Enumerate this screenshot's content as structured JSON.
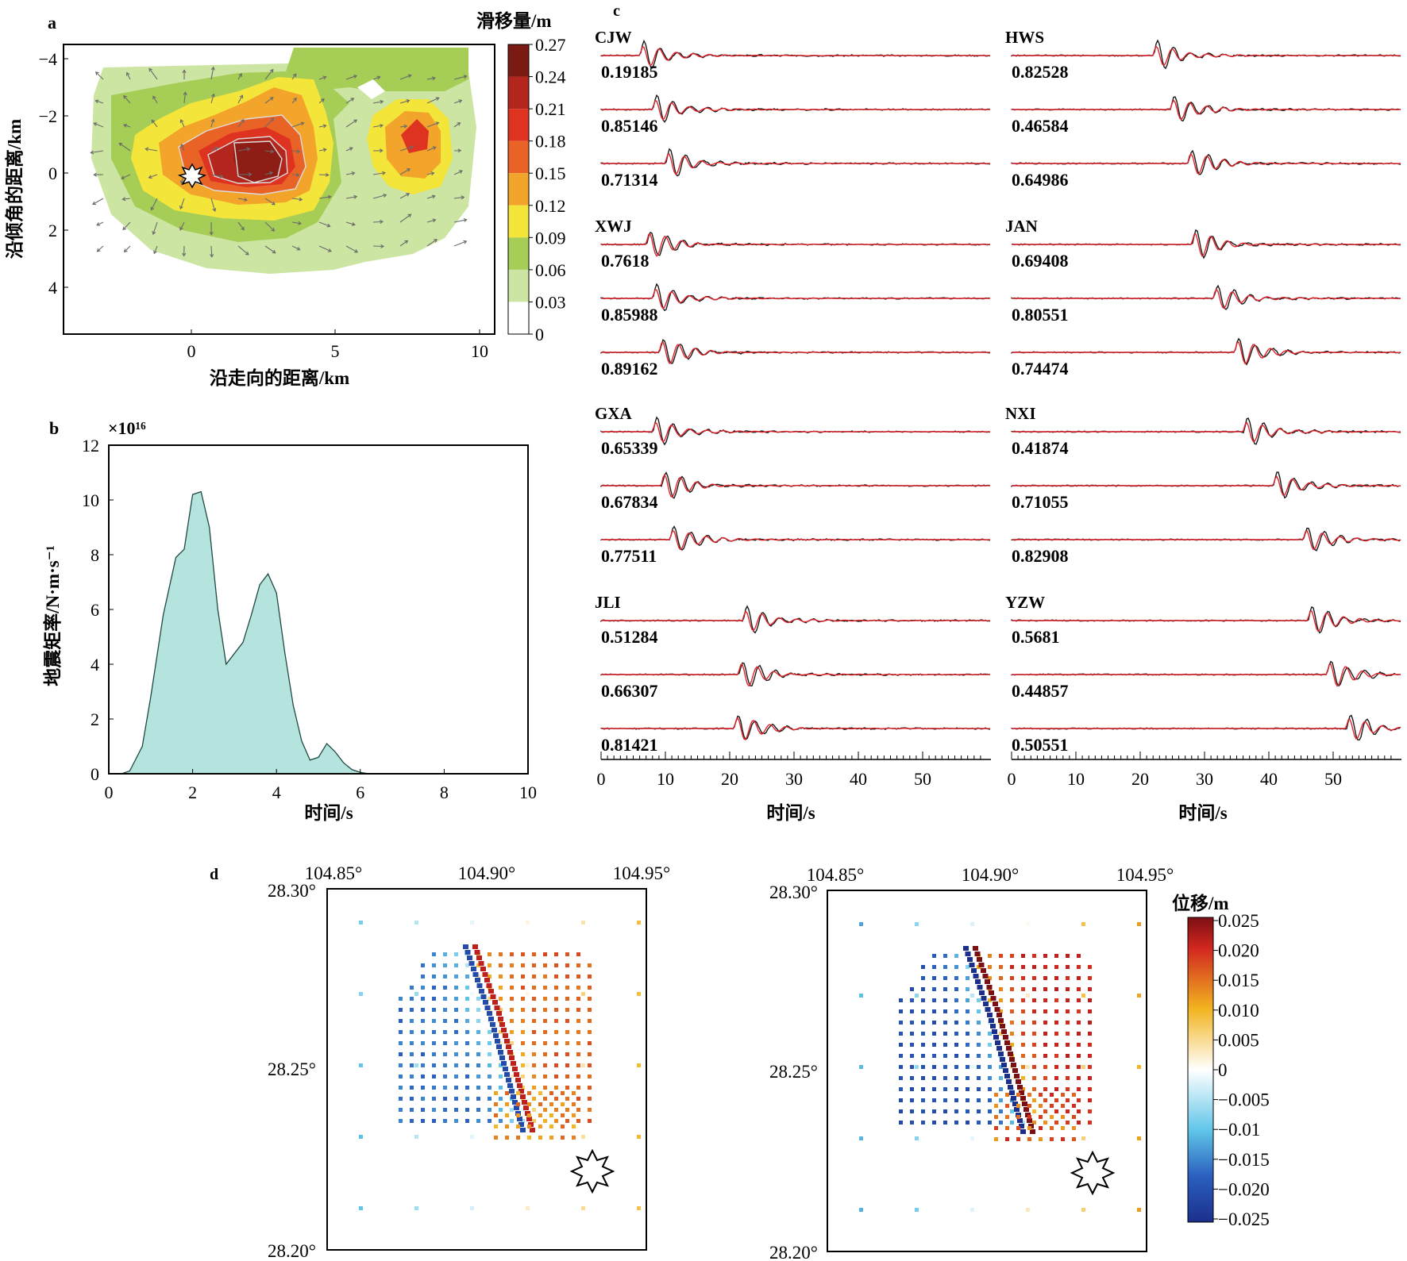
{
  "panel_labels": {
    "a": "a",
    "b": "b",
    "c": "c",
    "d": "d"
  },
  "panel_a": {
    "xlabel": "沿走向的距离/km",
    "ylabel": "沿倾角的距离/km",
    "xticks": [
      "0",
      "5",
      "10"
    ],
    "yticks": [
      "−4",
      "−2",
      "0",
      "2",
      "4"
    ],
    "colorbar_title": "滑移量/m",
    "colorbar_ticks": [
      "0.27",
      "0.24",
      "0.21",
      "0.18",
      "0.15",
      "0.12",
      "0.09",
      "0.06",
      "0.03",
      "0"
    ],
    "colorbar_colors": [
      "#7a1a12",
      "#b2261d",
      "#df3322",
      "#ea6326",
      "#f2a52a",
      "#f4e53a",
      "#a6cd55",
      "#cde5a3",
      "#ffffff"
    ]
  },
  "panel_c": {
    "xlabel": "时间/s",
    "xticks": [
      "0",
      "10",
      "20",
      "30",
      "40",
      "50"
    ],
    "observed_color": "#1a1a1a",
    "synthetic_color": "#e0242c",
    "stations": [
      {
        "name": "CJW",
        "cc": [
          "0.19185",
          "0.85146",
          "0.71314"
        ]
      },
      {
        "name": "XWJ",
        "cc": [
          "0.7618",
          "0.85988",
          "0.89162"
        ]
      },
      {
        "name": "GXA",
        "cc": [
          "0.65339",
          "0.67834",
          "0.77511"
        ]
      },
      {
        "name": "JLI",
        "cc": [
          "0.51284",
          "0.66307",
          "0.81421"
        ]
      },
      {
        "name": "HWS",
        "cc": [
          "0.82528",
          "0.46584",
          "0.64986"
        ]
      },
      {
        "name": "JAN",
        "cc": [
          "0.69408",
          "0.80551",
          "0.74474"
        ]
      },
      {
        "name": "NXI",
        "cc": [
          "0.41874",
          "0.71055",
          "0.82908"
        ]
      },
      {
        "name": "YZW",
        "cc": [
          "0.5681",
          "0.44857",
          "0.50551"
        ]
      }
    ]
  },
  "panel_d": {
    "lon_ticks": [
      "104.85°",
      "104.90°",
      "104.95°"
    ],
    "lat_ticks": [
      "28.30°",
      "28.25°",
      "28.20°"
    ],
    "colorbar_title": "位移/m",
    "colorbar_ticks": [
      "0.025",
      "0.020",
      "0.015",
      "0.010",
      "0.005",
      "0",
      "−0.005",
      "−0.01",
      "−0.015",
      "−0.020",
      "−0.025"
    ]
  },
  "chart_data": [
    {
      "type": "area",
      "panel": "b",
      "title": "",
      "xlabel": "时间/s",
      "ylabel": "地震矩率/N·m·s⁻¹",
      "y_multiplier": "×10¹⁶",
      "xlim": [
        0,
        10
      ],
      "ylim": [
        0,
        12
      ],
      "xticks": [
        "0",
        "2",
        "4",
        "6",
        "8",
        "10"
      ],
      "yticks": [
        "0",
        "2",
        "4",
        "6",
        "8",
        "10",
        "12"
      ],
      "fill_color": "#b5e3de",
      "x": [
        0.3,
        0.5,
        0.8,
        1.0,
        1.3,
        1.6,
        1.8,
        2.0,
        2.2,
        2.4,
        2.6,
        2.8,
        3.0,
        3.2,
        3.4,
        3.6,
        3.8,
        4.0,
        4.2,
        4.4,
        4.6,
        4.8,
        5.0,
        5.2,
        5.4,
        5.6,
        5.8,
        6.0,
        6.2
      ],
      "y": [
        0,
        0.1,
        1.0,
        2.8,
        5.8,
        7.9,
        8.2,
        10.2,
        10.3,
        9.0,
        6.0,
        4.0,
        4.4,
        4.8,
        5.8,
        6.9,
        7.3,
        6.6,
        4.4,
        2.5,
        1.2,
        0.5,
        0.6,
        1.1,
        0.8,
        0.4,
        0.15,
        0.05,
        0
      ]
    }
  ]
}
